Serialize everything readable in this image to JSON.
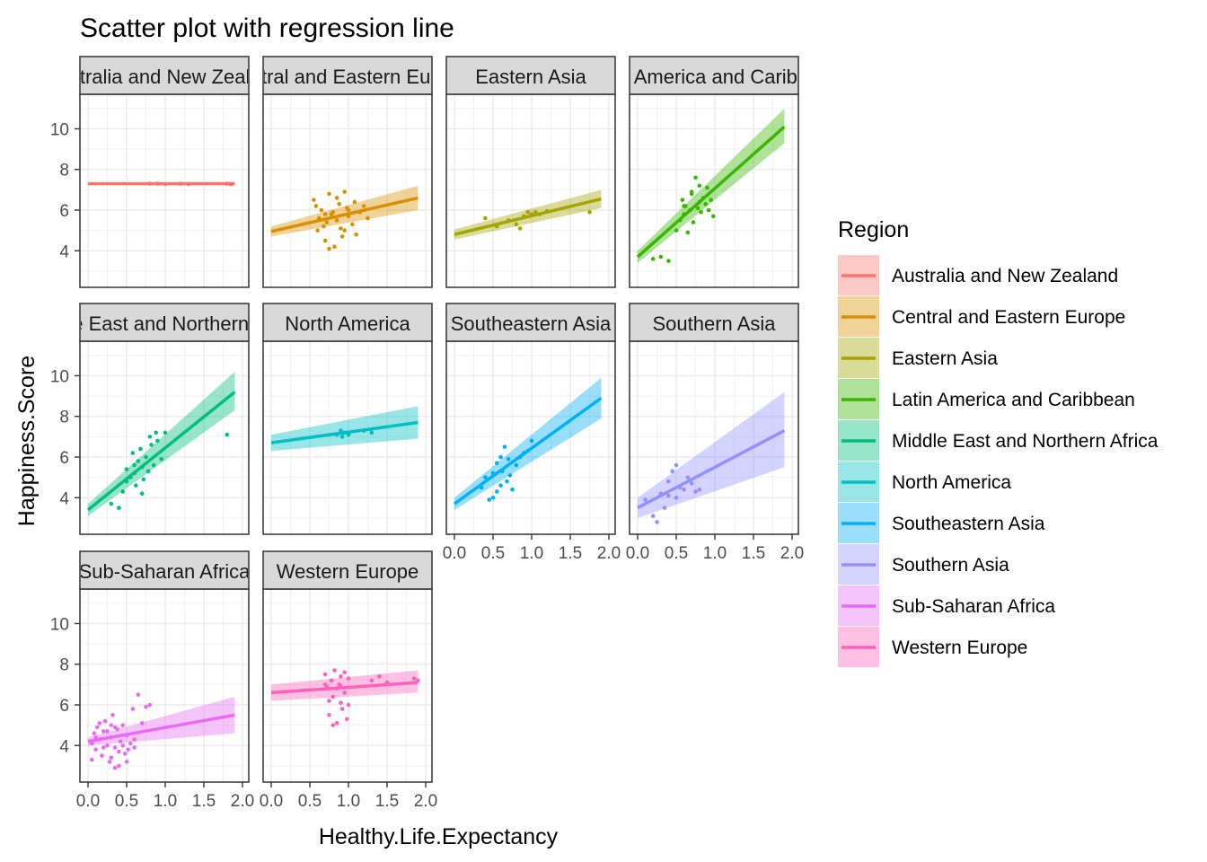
{
  "chart_data": {
    "type": "scatter",
    "title": "Scatter plot with regression line",
    "xlabel": "Healthy.Life.Expectancy",
    "ylabel": "Happiness.Score",
    "xlim": [
      0,
      2
    ],
    "ylim": [
      2.2,
      11.7
    ],
    "x_ticks": [
      "0.0",
      "0.5",
      "1.0",
      "1.5",
      "2.0"
    ],
    "y_ticks": [
      "4",
      "6",
      "8",
      "10"
    ],
    "grid": true,
    "legend": {
      "title": "Region",
      "position": "right"
    },
    "facets": [
      {
        "name": "Australia and New Zealand",
        "strip_label": "Australia and New Zealand",
        "color": "#F8766D",
        "line": {
          "x": [
            0.0,
            1.9
          ],
          "y": [
            7.3,
            7.3
          ]
        },
        "band": {
          "lower": [
            7.25,
            7.22
          ],
          "upper": [
            7.35,
            7.38
          ]
        },
        "points": [
          [
            0.8,
            7.3
          ],
          [
            0.9,
            7.3
          ],
          [
            1.0,
            7.28
          ],
          [
            1.2,
            7.3
          ],
          [
            1.3,
            7.28
          ],
          [
            1.8,
            7.3
          ],
          [
            1.85,
            7.28
          ]
        ]
      },
      {
        "name": "Central and Eastern Europe",
        "strip_label": "Central and Eastern Europe",
        "color": "#D89000",
        "line": {
          "x": [
            0.0,
            1.9
          ],
          "y": [
            4.95,
            6.6
          ]
        },
        "band": {
          "lower": [
            4.7,
            6.0
          ],
          "upper": [
            5.2,
            7.2
          ]
        },
        "points": [
          [
            0.55,
            6.5
          ],
          [
            0.58,
            6.2
          ],
          [
            0.6,
            5.0
          ],
          [
            0.62,
            5.6
          ],
          [
            0.65,
            6.0
          ],
          [
            0.68,
            5.2
          ],
          [
            0.7,
            4.5
          ],
          [
            0.72,
            5.4
          ],
          [
            0.75,
            6.8
          ],
          [
            0.78,
            5.8
          ],
          [
            0.8,
            5.9
          ],
          [
            0.82,
            4.2
          ],
          [
            0.85,
            5.5
          ],
          [
            0.88,
            6.3
          ],
          [
            0.9,
            5.1
          ],
          [
            0.92,
            4.7
          ],
          [
            0.95,
            6.9
          ],
          [
            0.98,
            6.1
          ],
          [
            1.0,
            5.7
          ],
          [
            1.05,
            5.3
          ],
          [
            1.08,
            6.4
          ],
          [
            1.1,
            4.8
          ],
          [
            1.15,
            5.9
          ],
          [
            1.2,
            6.2
          ],
          [
            1.25,
            5.6
          ],
          [
            0.75,
            4.1
          ],
          [
            0.85,
            6.6
          ],
          [
            0.95,
            5.0
          ],
          [
            1.0,
            6.0
          ],
          [
            0.7,
            5.8
          ]
        ]
      },
      {
        "name": "Eastern Asia",
        "strip_label": "Eastern Asia",
        "color": "#A3A500",
        "line": {
          "x": [
            0.0,
            1.9
          ],
          "y": [
            4.8,
            6.55
          ]
        },
        "band": {
          "lower": [
            4.55,
            6.1
          ],
          "upper": [
            5.05,
            7.0
          ]
        },
        "points": [
          [
            0.4,
            5.6
          ],
          [
            0.55,
            5.2
          ],
          [
            0.7,
            5.5
          ],
          [
            0.8,
            5.3
          ],
          [
            0.9,
            5.7
          ],
          [
            0.95,
            5.9
          ],
          [
            1.0,
            5.8
          ],
          [
            1.05,
            5.9
          ],
          [
            1.1,
            5.8
          ],
          [
            1.2,
            5.95
          ],
          [
            0.85,
            5.1
          ],
          [
            1.75,
            5.9
          ]
        ]
      },
      {
        "name": "Latin America and Caribbean",
        "strip_label": "Latin America and Caribbean",
        "color": "#39B600",
        "line": {
          "x": [
            0.0,
            1.9
          ],
          "y": [
            3.7,
            10.1
          ]
        },
        "band": {
          "lower": [
            3.4,
            9.3
          ],
          "upper": [
            4.0,
            11.0
          ]
        },
        "points": [
          [
            0.2,
            3.6
          ],
          [
            0.3,
            3.7
          ],
          [
            0.4,
            3.5
          ],
          [
            0.5,
            5.0
          ],
          [
            0.55,
            5.5
          ],
          [
            0.58,
            6.5
          ],
          [
            0.6,
            5.8
          ],
          [
            0.62,
            6.2
          ],
          [
            0.65,
            4.9
          ],
          [
            0.68,
            6.0
          ],
          [
            0.7,
            6.8
          ],
          [
            0.72,
            5.4
          ],
          [
            0.75,
            7.6
          ],
          [
            0.78,
            6.1
          ],
          [
            0.8,
            6.4
          ],
          [
            0.82,
            5.9
          ],
          [
            0.85,
            6.6
          ],
          [
            0.88,
            6.3
          ],
          [
            0.9,
            7.1
          ],
          [
            0.92,
            6.0
          ],
          [
            0.95,
            6.5
          ],
          [
            0.98,
            5.7
          ],
          [
            0.7,
            6.9
          ],
          [
            0.6,
            6.2
          ],
          [
            0.8,
            7.2
          ]
        ]
      },
      {
        "name": "Middle East and Northern Africa",
        "strip_label": "Middle East and Northern Africa",
        "color": "#00BF7D",
        "line": {
          "x": [
            0.0,
            1.9
          ],
          "y": [
            3.4,
            9.2
          ]
        },
        "band": {
          "lower": [
            3.1,
            8.3
          ],
          "upper": [
            3.7,
            10.2
          ]
        },
        "points": [
          [
            0.3,
            3.7
          ],
          [
            0.4,
            3.5
          ],
          [
            0.45,
            4.3
          ],
          [
            0.5,
            4.8
          ],
          [
            0.55,
            5.0
          ],
          [
            0.58,
            6.2
          ],
          [
            0.6,
            5.2
          ],
          [
            0.62,
            4.6
          ],
          [
            0.65,
            5.8
          ],
          [
            0.68,
            6.4
          ],
          [
            0.7,
            5.5
          ],
          [
            0.72,
            4.9
          ],
          [
            0.75,
            6.0
          ],
          [
            0.78,
            5.3
          ],
          [
            0.8,
            7.0
          ],
          [
            0.82,
            6.6
          ],
          [
            0.85,
            5.6
          ],
          [
            0.88,
            7.2
          ],
          [
            0.9,
            6.8
          ],
          [
            0.95,
            5.9
          ],
          [
            1.0,
            7.2
          ],
          [
            0.7,
            4.2
          ],
          [
            0.6,
            5.6
          ],
          [
            0.5,
            5.4
          ],
          [
            1.8,
            7.1
          ]
        ]
      },
      {
        "name": "North America",
        "strip_label": "North America",
        "color": "#00BFC4",
        "line": {
          "x": [
            0.0,
            1.9
          ],
          "y": [
            6.7,
            7.7
          ]
        },
        "band": {
          "lower": [
            6.3,
            6.9
          ],
          "upper": [
            7.1,
            8.5
          ]
        },
        "points": [
          [
            0.85,
            7.1
          ],
          [
            0.9,
            7.3
          ],
          [
            0.92,
            7.0
          ],
          [
            0.95,
            7.2
          ],
          [
            1.0,
            7.1
          ],
          [
            1.2,
            7.3
          ],
          [
            1.3,
            7.2
          ]
        ]
      },
      {
        "name": "Southeastern Asia",
        "strip_label": "Southeastern Asia",
        "color": "#00B0F6",
        "line": {
          "x": [
            0.0,
            1.9
          ],
          "y": [
            3.7,
            8.9
          ]
        },
        "band": {
          "lower": [
            3.4,
            7.9
          ],
          "upper": [
            4.0,
            9.9
          ]
        },
        "points": [
          [
            0.35,
            4.5
          ],
          [
            0.4,
            5.0
          ],
          [
            0.45,
            3.9
          ],
          [
            0.5,
            5.2
          ],
          [
            0.55,
            4.3
          ],
          [
            0.6,
            6.0
          ],
          [
            0.62,
            5.3
          ],
          [
            0.65,
            6.5
          ],
          [
            0.68,
            4.8
          ],
          [
            0.7,
            5.9
          ],
          [
            0.72,
            5.1
          ],
          [
            0.75,
            4.4
          ],
          [
            0.8,
            5.6
          ],
          [
            0.85,
            6.0
          ],
          [
            0.9,
            6.2
          ],
          [
            0.95,
            6.3
          ],
          [
            1.0,
            6.8
          ],
          [
            0.55,
            5.7
          ],
          [
            0.6,
            4.6
          ],
          [
            0.5,
            4.0
          ]
        ]
      },
      {
        "name": "Southern Asia",
        "strip_label": "Southern Asia",
        "color": "#9590FF",
        "line": {
          "x": [
            0.0,
            1.9
          ],
          "y": [
            3.5,
            7.3
          ]
        },
        "band": {
          "lower": [
            3.0,
            5.5
          ],
          "upper": [
            4.0,
            9.2
          ]
        },
        "points": [
          [
            0.1,
            3.9
          ],
          [
            0.2,
            3.1
          ],
          [
            0.25,
            2.8
          ],
          [
            0.3,
            4.2
          ],
          [
            0.35,
            3.5
          ],
          [
            0.4,
            4.8
          ],
          [
            0.45,
            5.3
          ],
          [
            0.5,
            4.0
          ],
          [
            0.5,
            5.6
          ],
          [
            0.55,
            4.5
          ],
          [
            0.6,
            4.4
          ],
          [
            0.65,
            5.0
          ],
          [
            0.7,
            4.7
          ],
          [
            0.75,
            4.3
          ],
          [
            0.8,
            4.4
          ],
          [
            0.4,
            4.1
          ]
        ]
      },
      {
        "name": "Sub-Saharan Africa",
        "strip_label": "Sub-Saharan Africa",
        "color": "#E76BF3",
        "line": {
          "x": [
            0.0,
            1.9
          ],
          "y": [
            4.2,
            5.5
          ]
        },
        "band": {
          "lower": [
            4.0,
            4.6
          ],
          "upper": [
            4.4,
            6.4
          ]
        },
        "points": [
          [
            0.05,
            4.1
          ],
          [
            0.08,
            4.6
          ],
          [
            0.1,
            3.8
          ],
          [
            0.12,
            4.9
          ],
          [
            0.15,
            4.3
          ],
          [
            0.18,
            3.5
          ],
          [
            0.2,
            4.7
          ],
          [
            0.22,
            5.2
          ],
          [
            0.25,
            4.0
          ],
          [
            0.28,
            3.2
          ],
          [
            0.3,
            4.4
          ],
          [
            0.32,
            5.5
          ],
          [
            0.35,
            3.9
          ],
          [
            0.38,
            4.8
          ],
          [
            0.4,
            3.0
          ],
          [
            0.42,
            4.2
          ],
          [
            0.45,
            5.0
          ],
          [
            0.48,
            3.6
          ],
          [
            0.5,
            4.5
          ],
          [
            0.52,
            3.8
          ],
          [
            0.55,
            4.1
          ],
          [
            0.58,
            5.8
          ],
          [
            0.6,
            4.3
          ],
          [
            0.65,
            6.5
          ],
          [
            0.7,
            5.1
          ],
          [
            0.75,
            5.9
          ],
          [
            0.8,
            6.0
          ],
          [
            0.3,
            3.4
          ],
          [
            0.2,
            3.9
          ],
          [
            0.15,
            5.1
          ],
          [
            0.35,
            4.9
          ],
          [
            0.1,
            4.4
          ],
          [
            0.25,
            4.7
          ],
          [
            0.4,
            3.7
          ],
          [
            0.45,
            4.0
          ],
          [
            0.05,
            3.3
          ],
          [
            0.5,
            3.2
          ],
          [
            0.3,
            5.0
          ],
          [
            0.6,
            3.9
          ],
          [
            0.35,
            2.9
          ]
        ]
      },
      {
        "name": "Western Europe",
        "strip_label": "Western Europe",
        "color": "#FF62BC",
        "line": {
          "x": [
            0.0,
            1.9
          ],
          "y": [
            6.6,
            7.1
          ]
        },
        "band": {
          "lower": [
            6.2,
            6.6
          ],
          "upper": [
            7.0,
            7.7
          ]
        },
        "points": [
          [
            0.7,
            7.5
          ],
          [
            0.72,
            6.9
          ],
          [
            0.75,
            5.5
          ],
          [
            0.78,
            7.2
          ],
          [
            0.8,
            6.4
          ],
          [
            0.82,
            7.7
          ],
          [
            0.85,
            5.1
          ],
          [
            0.85,
            6.8
          ],
          [
            0.88,
            7.0
          ],
          [
            0.9,
            6.1
          ],
          [
            0.9,
            7.4
          ],
          [
            0.92,
            5.8
          ],
          [
            0.95,
            7.6
          ],
          [
            0.95,
            6.6
          ],
          [
            0.98,
            5.3
          ],
          [
            1.0,
            7.3
          ],
          [
            1.0,
            6.0
          ],
          [
            0.8,
            5.0
          ],
          [
            0.75,
            6.2
          ],
          [
            1.3,
            7.2
          ],
          [
            1.4,
            7.4
          ],
          [
            1.5,
            7.1
          ],
          [
            1.85,
            7.3
          ],
          [
            1.9,
            7.2
          ],
          [
            0.9,
            6.9
          ],
          [
            0.7,
            7.0
          ]
        ]
      }
    ]
  }
}
